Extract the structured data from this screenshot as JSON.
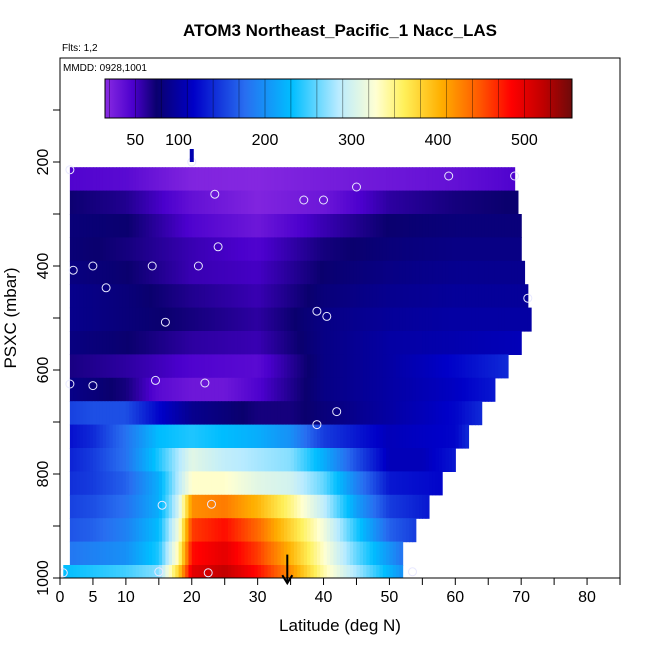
{
  "chart_data": {
    "type": "heatmap",
    "title": "ATOM3 Northeast_Pacific_1 Nacc_LAS",
    "flights_label": "Flts: 1,2",
    "dates_label": "MMDD: 0928,1001",
    "xlabel": "Latitude (deg N)",
    "ylabel": "PSXC (mbar)",
    "xlim": [
      0,
      85
    ],
    "ylim": [
      1000,
      0
    ],
    "x_ticks": [
      0,
      5,
      10,
      20,
      30,
      40,
      50,
      60,
      70,
      80
    ],
    "x_tick_labels": [
      "0",
      "5",
      "10",
      "20",
      "30",
      "40",
      "50",
      "60",
      "70",
      "80"
    ],
    "y_ticks": [
      200,
      400,
      600,
      800,
      1000
    ],
    "y_tick_labels": [
      "200",
      "400",
      "600",
      "800",
      "1000"
    ],
    "colorbar": {
      "range": [
        15,
        555
      ],
      "ticks": [
        50,
        100,
        200,
        300,
        400,
        500
      ],
      "tick_labels": [
        "50",
        "100",
        "200",
        "300",
        "400",
        "500"
      ]
    },
    "bands": [
      {
        "p_top": 210,
        "p_bot": 255,
        "x_start": 1.5,
        "x_end": 69,
        "lat": [
          0,
          10,
          20,
          30,
          40,
          50,
          60,
          69
        ],
        "val": [
          45,
          40,
          20,
          18,
          25,
          30,
          35,
          45
        ]
      },
      {
        "p_top": 255,
        "p_bot": 300,
        "x_start": 1.5,
        "x_end": 69.5,
        "lat": [
          0,
          10,
          20,
          30,
          40,
          50,
          60,
          69
        ],
        "val": [
          75,
          65,
          35,
          20,
          30,
          60,
          70,
          75
        ]
      },
      {
        "p_top": 300,
        "p_bot": 345,
        "x_start": 1.5,
        "x_end": 70,
        "lat": [
          0,
          10,
          20,
          30,
          40,
          50,
          60,
          70
        ],
        "val": [
          80,
          75,
          45,
          30,
          55,
          75,
          80,
          80
        ]
      },
      {
        "p_top": 345,
        "p_bot": 390,
        "x_start": 1.5,
        "x_end": 70,
        "lat": [
          0,
          10,
          20,
          30,
          40,
          50,
          60,
          70
        ],
        "val": [
          80,
          70,
          55,
          45,
          70,
          80,
          85,
          85
        ]
      },
      {
        "p_top": 390,
        "p_bot": 435,
        "x_start": 1.5,
        "x_end": 70.5,
        "lat": [
          0,
          10,
          20,
          30,
          40,
          50,
          60,
          70
        ],
        "val": [
          85,
          75,
          55,
          50,
          75,
          85,
          90,
          90
        ]
      },
      {
        "p_top": 435,
        "p_bot": 480,
        "x_start": 1.5,
        "x_end": 71,
        "lat": [
          0,
          10,
          20,
          30,
          40,
          50,
          60,
          70
        ],
        "val": [
          90,
          80,
          65,
          55,
          80,
          90,
          95,
          95
        ]
      },
      {
        "p_top": 480,
        "p_bot": 525,
        "x_start": 1.5,
        "x_end": 71.5,
        "lat": [
          0,
          10,
          20,
          30,
          40,
          50,
          60,
          71
        ],
        "val": [
          90,
          80,
          70,
          60,
          85,
          95,
          100,
          100
        ]
      },
      {
        "p_top": 525,
        "p_bot": 570,
        "x_start": 1.5,
        "x_end": 70,
        "lat": [
          0,
          10,
          20,
          30,
          40,
          50,
          60,
          70
        ],
        "val": [
          85,
          75,
          60,
          55,
          85,
          100,
          105,
          110
        ]
      },
      {
        "p_top": 570,
        "p_bot": 615,
        "x_start": 1.5,
        "x_end": 68,
        "lat": [
          0,
          10,
          20,
          30,
          40,
          50,
          60,
          68
        ],
        "val": [
          70,
          60,
          45,
          40,
          85,
          100,
          120,
          140
        ]
      },
      {
        "p_top": 615,
        "p_bot": 660,
        "x_start": 1.5,
        "x_end": 66,
        "lat": [
          0,
          10,
          15,
          20,
          25,
          30,
          40,
          50,
          60,
          66
        ],
        "val": [
          90,
          70,
          40,
          30,
          30,
          45,
          85,
          100,
          115,
          130
        ]
      },
      {
        "p_top": 660,
        "p_bot": 705,
        "x_start": 1.5,
        "x_end": 64,
        "lat": [
          0,
          5,
          10,
          15,
          20,
          25,
          30,
          35,
          40,
          50,
          60,
          64
        ],
        "val": [
          150,
          160,
          160,
          120,
          90,
          80,
          70,
          70,
          80,
          100,
          120,
          140
        ]
      },
      {
        "p_top": 705,
        "p_bot": 750,
        "x_start": 1.5,
        "x_end": 62,
        "lat": [
          0,
          5,
          10,
          15,
          20,
          25,
          30,
          35,
          40,
          50,
          60,
          62
        ],
        "val": [
          120,
          140,
          180,
          230,
          240,
          230,
          220,
          200,
          150,
          110,
          120,
          140
        ]
      },
      {
        "p_top": 750,
        "p_bot": 795,
        "x_start": 1.5,
        "x_end": 60,
        "lat": [
          0,
          5,
          10,
          15,
          20,
          25,
          30,
          35,
          40,
          45,
          50,
          55,
          60
        ],
        "val": [
          130,
          150,
          180,
          240,
          310,
          290,
          280,
          270,
          220,
          160,
          110,
          110,
          130
        ]
      },
      {
        "p_top": 795,
        "p_bot": 840,
        "x_start": 1.5,
        "x_end": 58,
        "lat": [
          0,
          5,
          10,
          15,
          20,
          25,
          30,
          35,
          40,
          45,
          50,
          58
        ],
        "val": [
          140,
          150,
          170,
          220,
          330,
          330,
          310,
          300,
          260,
          190,
          130,
          120
        ]
      },
      {
        "p_top": 840,
        "p_bot": 885,
        "x_start": 1.5,
        "x_end": 56,
        "lat": [
          0,
          5,
          10,
          15,
          18,
          20,
          25,
          30,
          35,
          40,
          45,
          50,
          56
        ],
        "val": [
          150,
          160,
          180,
          220,
          300,
          420,
          430,
          400,
          350,
          290,
          210,
          150,
          130
        ]
      },
      {
        "p_top": 885,
        "p_bot": 930,
        "x_start": 1.5,
        "x_end": 54,
        "lat": [
          0,
          5,
          10,
          15,
          18,
          20,
          25,
          30,
          35,
          40,
          45,
          50,
          54
        ],
        "val": [
          160,
          170,
          190,
          230,
          320,
          460,
          480,
          440,
          380,
          320,
          240,
          170,
          150
        ]
      },
      {
        "p_top": 930,
        "p_bot": 975,
        "x_start": 1.5,
        "x_end": 52,
        "lat": [
          0,
          5,
          10,
          15,
          18,
          20,
          25,
          30,
          35,
          40,
          45,
          52
        ],
        "val": [
          180,
          190,
          200,
          240,
          340,
          480,
          500,
          460,
          400,
          330,
          260,
          180
        ]
      },
      {
        "p_top": 975,
        "p_bot": 1015,
        "x_start": 0.5,
        "x_end": 52,
        "lat": [
          0,
          5,
          10,
          15,
          18,
          20,
          25,
          30,
          35,
          40,
          45,
          52
        ],
        "val": [
          230,
          240,
          250,
          270,
          380,
          500,
          520,
          480,
          420,
          340,
          280,
          200
        ]
      }
    ],
    "markers": [
      [
        1.5,
        215
      ],
      [
        20,
        200
      ],
      [
        23.5,
        262
      ],
      [
        37,
        273
      ],
      [
        40,
        273
      ],
      [
        45,
        248
      ],
      [
        59,
        227
      ],
      [
        69,
        227
      ],
      [
        24,
        363
      ],
      [
        2,
        408
      ],
      [
        5,
        400
      ],
      [
        7,
        442
      ],
      [
        14,
        400
      ],
      [
        21,
        400
      ],
      [
        16,
        508
      ],
      [
        39,
        487
      ],
      [
        40.5,
        497
      ],
      [
        71,
        462
      ],
      [
        1.5,
        627
      ],
      [
        5,
        630
      ],
      [
        14.5,
        620
      ],
      [
        22,
        625
      ],
      [
        39,
        705
      ],
      [
        42,
        680
      ],
      [
        15.5,
        860
      ],
      [
        23,
        858
      ],
      [
        0.5,
        990
      ],
      [
        15,
        988
      ],
      [
        22.5,
        990
      ],
      [
        53.5,
        988
      ]
    ],
    "bars": [
      {
        "x": 20,
        "p_from": 175,
        "p_to": 200
      }
    ],
    "arrows": [
      {
        "x": 34.5,
        "p_from": 955,
        "p_to": 1010
      }
    ]
  }
}
